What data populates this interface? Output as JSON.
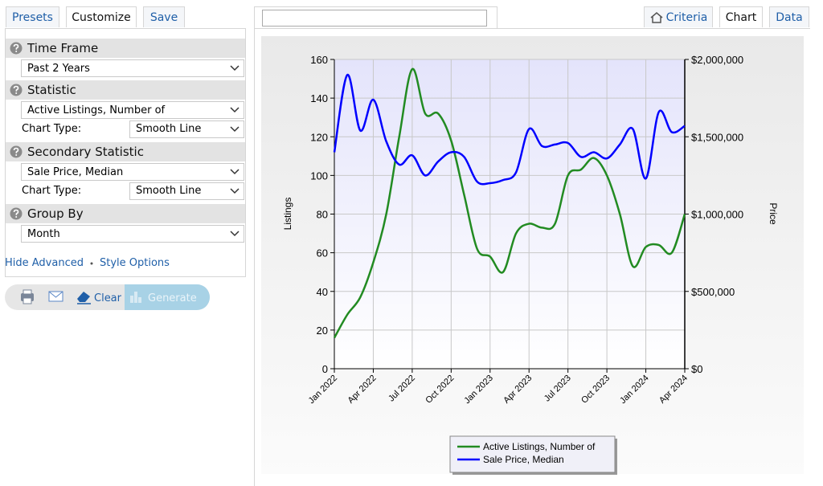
{
  "left_tabs": [
    "Presets",
    "Customize",
    "Save"
  ],
  "sections": [
    {
      "title": "Time Frame",
      "select": "Past 2 Years"
    },
    {
      "title": "Statistic",
      "select": "Active Listings, Number of",
      "chart_type_label": "Chart Type:",
      "chart_type": "Smooth Line"
    },
    {
      "title": "Secondary Statistic",
      "select": "Sale Price, Median",
      "chart_type_label": "Chart Type:",
      "chart_type": "Smooth Line"
    },
    {
      "title": "Group By",
      "select": "Month"
    }
  ],
  "links": [
    "Hide Advanced",
    "Style Options"
  ],
  "toolbar": {
    "clear": "Clear",
    "generate": "Generate"
  },
  "right_tabs": [
    "Criteria",
    "Chart",
    "Data"
  ],
  "chart_data": {
    "type": "line",
    "smooth": true,
    "y_label": "Listings",
    "y2_label": "Price",
    "categories": [
      "Jan 2022",
      null,
      null,
      "Apr 2022",
      null,
      null,
      "Jul 2022",
      null,
      null,
      "Oct 2022",
      null,
      null,
      "Jan 2023",
      null,
      null,
      "Apr 2023",
      null,
      null,
      "Jul 2023",
      null,
      null,
      "Oct 2023",
      null,
      null,
      "Jan 2024",
      null,
      null,
      "Apr 2024"
    ],
    "ylim": [
      0,
      160
    ],
    "yticks": [
      0,
      20,
      40,
      60,
      80,
      100,
      120,
      140,
      160
    ],
    "y2lim": [
      0,
      2000000
    ],
    "y2ticks": [
      {
        "value": 0,
        "label": "$0"
      },
      {
        "value": 500000,
        "label": "$500,000"
      },
      {
        "value": 1000000,
        "label": "$1,000,000"
      },
      {
        "value": 1500000,
        "label": "$1,500,000"
      },
      {
        "value": 2000000,
        "label": "$2,000,000"
      }
    ],
    "grid": true,
    "legend": "bottom",
    "series": [
      {
        "name": "Active Listings, Number of",
        "color": "#228b22",
        "values": [
          16,
          28,
          37,
          55,
          80,
          120,
          155,
          132,
          132,
          118,
          90,
          62,
          58,
          50,
          70,
          75,
          73,
          75,
          100,
          103,
          109,
          100,
          80,
          53,
          63,
          64,
          60,
          80
        ]
      },
      {
        "name": "Sale Price, Median",
        "color": "#0000ff",
        "axis": "y2",
        "values": [
          1400000,
          1900000,
          1540000,
          1740000,
          1470000,
          1320000,
          1380000,
          1250000,
          1340000,
          1400000,
          1370000,
          1210000,
          1200000,
          1220000,
          1270000,
          1550000,
          1440000,
          1450000,
          1460000,
          1370000,
          1400000,
          1360000,
          1450000,
          1550000,
          1230000,
          1660000,
          1530000,
          1570000
        ]
      }
    ]
  }
}
